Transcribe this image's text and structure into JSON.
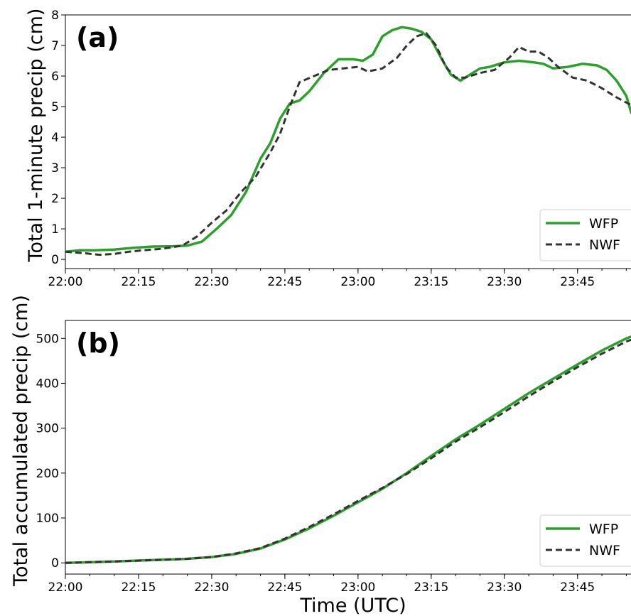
{
  "chart_data": [
    {
      "type": "line",
      "panel_label": "(a)",
      "ylabel": "Total 1-minute precip (cm)",
      "xlabel": "",
      "xlim": [
        "22:00",
        "23:58"
      ],
      "ylim": [
        -0.3,
        8
      ],
      "x_ticks": [
        "22:00",
        "22:15",
        "22:30",
        "22:45",
        "23:00",
        "23:15",
        "23:30",
        "23:45"
      ],
      "y_ticks": [
        "0",
        "1",
        "2",
        "3",
        "4",
        "5",
        "6",
        "7",
        "8"
      ],
      "legend_position": "lower-right",
      "grid": false,
      "series": [
        {
          "name": "WFP",
          "color": "#2ca02c",
          "style": "solid",
          "x": [
            "22:00",
            "22:03",
            "22:06",
            "22:10",
            "22:14",
            "22:18",
            "22:22",
            "22:25",
            "22:28",
            "22:31",
            "22:34",
            "22:37",
            "22:40",
            "22:42",
            "22:44",
            "22:46",
            "22:48",
            "22:50",
            "22:53",
            "22:56",
            "22:59",
            "23:01",
            "23:03",
            "23:05",
            "23:07",
            "23:09",
            "23:11",
            "23:13",
            "23:15",
            "23:17",
            "23:19",
            "23:21",
            "23:23",
            "23:25",
            "23:27",
            "23:30",
            "23:33",
            "23:36",
            "23:38",
            "23:40",
            "23:43",
            "23:46",
            "23:49",
            "23:51",
            "23:53",
            "23:55",
            "23:56",
            "23:58"
          ],
          "values": [
            0.25,
            0.3,
            0.3,
            0.32,
            0.38,
            0.42,
            0.43,
            0.45,
            0.58,
            1.0,
            1.45,
            2.2,
            3.3,
            3.8,
            4.6,
            5.1,
            5.2,
            5.5,
            6.1,
            6.55,
            6.55,
            6.5,
            6.7,
            7.3,
            7.5,
            7.6,
            7.55,
            7.45,
            7.2,
            6.6,
            6.05,
            5.85,
            6.05,
            6.25,
            6.3,
            6.45,
            6.5,
            6.45,
            6.4,
            6.25,
            6.3,
            6.4,
            6.35,
            6.2,
            5.85,
            5.35,
            4.8,
            4.75
          ]
        },
        {
          "name": "NWF",
          "color": "#333333",
          "style": "dashed",
          "x": [
            "22:00",
            "22:04",
            "22:07",
            "22:10",
            "22:13",
            "22:16",
            "22:20",
            "22:24",
            "22:27",
            "22:30",
            "22:33",
            "22:36",
            "22:39",
            "22:42",
            "22:44",
            "22:46",
            "22:48",
            "22:51",
            "22:54",
            "22:57",
            "23:00",
            "23:02",
            "23:05",
            "23:08",
            "23:10",
            "23:12",
            "23:14",
            "23:16",
            "23:18",
            "23:20",
            "23:22",
            "23:25",
            "23:28",
            "23:31",
            "23:33",
            "23:35",
            "23:37",
            "23:39",
            "23:41",
            "23:44",
            "23:47",
            "23:50",
            "23:53",
            "23:56",
            "23:58"
          ],
          "values": [
            0.25,
            0.2,
            0.15,
            0.18,
            0.25,
            0.3,
            0.35,
            0.45,
            0.75,
            1.2,
            1.6,
            2.2,
            2.7,
            3.5,
            4.1,
            5.0,
            5.8,
            6.0,
            6.2,
            6.25,
            6.3,
            6.15,
            6.25,
            6.6,
            7.0,
            7.3,
            7.4,
            7.0,
            6.3,
            5.95,
            5.95,
            6.1,
            6.2,
            6.6,
            6.95,
            6.8,
            6.8,
            6.6,
            6.3,
            5.95,
            5.85,
            5.6,
            5.3,
            5.05,
            5.2
          ]
        }
      ]
    },
    {
      "type": "line",
      "panel_label": "(b)",
      "ylabel": "Total accumulated precip (cm)",
      "xlabel": "Time (UTC)",
      "xlim": [
        "22:00",
        "23:58"
      ],
      "ylim": [
        -25,
        540
      ],
      "x_ticks": [
        "22:00",
        "22:15",
        "22:30",
        "22:45",
        "23:00",
        "23:15",
        "23:30",
        "23:45"
      ],
      "y_ticks": [
        "0",
        "100",
        "200",
        "300",
        "400",
        "500"
      ],
      "legend_position": "lower-right",
      "grid": false,
      "series": [
        {
          "name": "WFP",
          "color": "#2ca02c",
          "style": "solid",
          "x": [
            "22:00",
            "22:10",
            "22:20",
            "22:25",
            "22:30",
            "22:35",
            "22:40",
            "22:45",
            "22:50",
            "22:55",
            "23:00",
            "23:05",
            "23:10",
            "23:15",
            "23:20",
            "23:25",
            "23:30",
            "23:35",
            "23:40",
            "23:45",
            "23:50",
            "23:55",
            "23:58"
          ],
          "values": [
            0,
            3,
            7,
            9,
            13,
            20,
            32,
            52,
            77,
            105,
            135,
            165,
            200,
            238,
            275,
            308,
            343,
            378,
            410,
            442,
            473,
            500,
            512
          ]
        },
        {
          "name": "NWF",
          "color": "#333333",
          "style": "dashed",
          "x": [
            "22:00",
            "22:10",
            "22:20",
            "22:25",
            "22:30",
            "22:35",
            "22:40",
            "22:45",
            "22:50",
            "22:55",
            "23:00",
            "23:05",
            "23:10",
            "23:15",
            "23:20",
            "23:25",
            "23:30",
            "23:35",
            "23:40",
            "23:45",
            "23:50",
            "23:55",
            "23:58"
          ],
          "values": [
            0,
            3,
            7,
            9,
            13,
            21,
            33,
            54,
            80,
            108,
            138,
            167,
            198,
            233,
            270,
            302,
            336,
            371,
            404,
            436,
            466,
            493,
            505
          ]
        }
      ]
    }
  ]
}
